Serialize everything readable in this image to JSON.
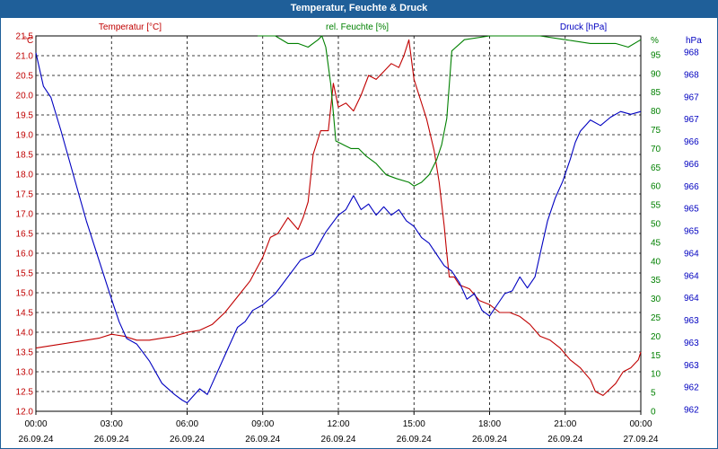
{
  "window": {
    "title": "Temperatur, Feuchte & Druck"
  },
  "chart_data": {
    "type": "line",
    "title": "Temperatur, Feuchte & Druck",
    "grid": true,
    "x_ticks": [
      {
        "time": "00:00",
        "date": "26.09.24"
      },
      {
        "time": "03:00",
        "date": "26.09.24"
      },
      {
        "time": "06:00",
        "date": "26.09.24"
      },
      {
        "time": "09:00",
        "date": "26.09.24"
      },
      {
        "time": "12:00",
        "date": "26.09.24"
      },
      {
        "time": "15:00",
        "date": "26.09.24"
      },
      {
        "time": "18:00",
        "date": "26.09.24"
      },
      {
        "time": "21:00",
        "date": "26.09.24"
      },
      {
        "time": "00:00",
        "date": "27.09.24"
      }
    ],
    "xlim_hours": [
      0,
      24
    ],
    "axes": {
      "temperature": {
        "label": "Temperatur [°C]",
        "unit": "°C",
        "color": "#c00000",
        "side": "left",
        "ylim": [
          12.0,
          21.5
        ],
        "ticks": [
          "12.0",
          "12.5",
          "13.0",
          "13.5",
          "14.0",
          "14.5",
          "15.0",
          "15.5",
          "16.0",
          "16.5",
          "17.0",
          "17.5",
          "18.0",
          "18.5",
          "19.0",
          "19.5",
          "20.0",
          "20.5",
          "21.0",
          "21.5"
        ]
      },
      "humidity": {
        "label": "rel. Feuchte [%]",
        "unit": "%",
        "color": "#008000",
        "side": "right",
        "ylim": [
          0,
          100
        ],
        "ticks": [
          "0",
          "5",
          "10",
          "15",
          "20",
          "25",
          "30",
          "35",
          "40",
          "45",
          "50",
          "55",
          "60",
          "65",
          "70",
          "75",
          "80",
          "85",
          "90",
          "95"
        ]
      },
      "pressure": {
        "label": "Druck [hPa]",
        "unit": "hPa",
        "color": "#0000c0",
        "side": "right",
        "ylim": [
          961.8,
          968.5
        ],
        "ticks": [
          "962",
          "962",
          "963",
          "963",
          "963",
          "964",
          "964",
          "964",
          "965",
          "965",
          "966",
          "966",
          "966",
          "967",
          "967",
          "968",
          "968"
        ]
      }
    },
    "series": [
      {
        "name": "Temperatur",
        "axis": "temperature",
        "color": "#c00000",
        "x": [
          0,
          1,
          2,
          2.5,
          3,
          3.5,
          4,
          4.5,
          5,
          5.5,
          6,
          6.5,
          7,
          7.5,
          8,
          8.5,
          9,
          9.3,
          9.6,
          10,
          10.4,
          10.6,
          10.8,
          11,
          11.3,
          11.6,
          11.8,
          12,
          12.3,
          12.6,
          12.9,
          13.2,
          13.5,
          13.8,
          14.1,
          14.4,
          14.6,
          14.8,
          15,
          15.2,
          15.5,
          15.8,
          16,
          16.2,
          16.3,
          16.4,
          16.6,
          16.8,
          17.2,
          17.6,
          18,
          18.4,
          18.8,
          19.2,
          19.6,
          20,
          20.4,
          20.8,
          21.2,
          21.6,
          22,
          22.2,
          22.5,
          23,
          23.3,
          23.6,
          23.9,
          24
        ],
        "y": [
          13.6,
          13.7,
          13.8,
          13.85,
          13.95,
          13.9,
          13.8,
          13.8,
          13.85,
          13.9,
          14.0,
          14.05,
          14.2,
          14.5,
          14.9,
          15.3,
          15.9,
          16.4,
          16.5,
          16.9,
          16.6,
          16.9,
          17.3,
          18.5,
          19.1,
          19.1,
          20.3,
          19.7,
          19.8,
          19.6,
          20.0,
          20.5,
          20.4,
          20.6,
          20.8,
          20.7,
          21.0,
          21.4,
          20.4,
          20.0,
          19.4,
          18.6,
          17.8,
          16.7,
          16.0,
          15.4,
          15.4,
          15.2,
          15.1,
          14.8,
          14.7,
          14.5,
          14.5,
          14.4,
          14.2,
          13.9,
          13.8,
          13.6,
          13.3,
          13.1,
          12.8,
          12.5,
          12.4,
          12.7,
          13.0,
          13.1,
          13.3,
          13.5
        ]
      },
      {
        "name": "rel. Feuchte",
        "axis": "humidity",
        "color": "#008000",
        "x": [
          8.8,
          9.5,
          10.0,
          10.4,
          10.8,
          11.2,
          11.35,
          11.5,
          11.7,
          11.9,
          12.2,
          12.5,
          12.8,
          13.1,
          13.5,
          13.9,
          14.3,
          14.8,
          15.0,
          15.3,
          15.6,
          15.9,
          16.1,
          16.3,
          16.5,
          17,
          18,
          19,
          20,
          21,
          22,
          23,
          23.5,
          24
        ],
        "y": [
          100,
          100,
          98,
          98,
          97,
          99,
          100,
          97,
          87,
          72,
          71,
          70,
          70,
          68,
          66,
          63,
          62,
          61,
          60,
          61,
          63,
          67,
          71,
          78,
          96,
          99,
          100,
          100,
          100,
          99,
          98,
          98,
          97,
          99
        ]
      },
      {
        "name": "Druck",
        "axis": "pressure",
        "color": "#0000c0",
        "x": [
          0,
          0.3,
          0.6,
          1,
          1.5,
          2,
          2.5,
          3,
          3.3,
          3.6,
          4,
          4.5,
          5,
          5.5,
          5.8,
          6,
          6.3,
          6.5,
          6.8,
          7,
          7.5,
          8,
          8.3,
          8.6,
          9,
          9.5,
          10,
          10.5,
          11,
          11.5,
          12,
          12.3,
          12.6,
          12.9,
          13.2,
          13.5,
          13.8,
          14.1,
          14.4,
          14.7,
          15,
          15.3,
          15.6,
          15.9,
          16.2,
          16.5,
          16.8,
          17.1,
          17.4,
          17.7,
          18,
          18.3,
          18.6,
          18.9,
          19.2,
          19.5,
          19.8,
          20,
          20.3,
          20.6,
          20.9,
          21.2,
          21.4,
          21.6,
          22,
          22.4,
          22.8,
          23.2,
          23.6,
          24
        ],
        "y": [
          968.2,
          967.6,
          967.4,
          966.8,
          966.0,
          965.2,
          964.5,
          963.8,
          963.4,
          963.1,
          963.0,
          962.7,
          962.3,
          962.1,
          962.0,
          961.95,
          962.1,
          962.2,
          962.1,
          962.3,
          962.8,
          963.3,
          963.4,
          963.6,
          963.7,
          963.9,
          964.2,
          964.5,
          964.6,
          965.0,
          965.3,
          965.4,
          965.65,
          965.4,
          965.5,
          965.3,
          965.45,
          965.3,
          965.4,
          965.2,
          965.1,
          964.9,
          964.8,
          964.6,
          964.4,
          964.3,
          964.1,
          963.8,
          963.9,
          963.6,
          963.5,
          963.7,
          963.9,
          963.95,
          964.2,
          964.0,
          964.2,
          964.6,
          965.2,
          965.6,
          965.9,
          966.3,
          966.6,
          966.8,
          967.0,
          966.9,
          967.05,
          967.15,
          967.1,
          967.15
        ]
      }
    ]
  }
}
